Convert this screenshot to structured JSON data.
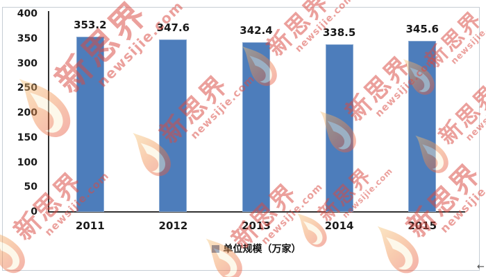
{
  "chart_data": {
    "type": "bar",
    "title": "",
    "categories": [
      "2011",
      "2012",
      "2013",
      "2014",
      "2015"
    ],
    "series": [
      {
        "name": "单位规模（万家）",
        "values": [
          353.2,
          347.6,
          342.4,
          338.5,
          345.6
        ]
      }
    ],
    "data_labels": [
      "353.2",
      "347.6",
      "342.4",
      "338.5",
      "345.6"
    ],
    "xlabel": "",
    "ylabel": "",
    "ylim": [
      0,
      400
    ],
    "yticks": [
      0,
      50,
      100,
      150,
      200,
      250,
      300,
      350,
      400
    ],
    "grid": false,
    "legend_position": "bottom",
    "colors": {
      "bar": "#4d7dbb",
      "bar_edge": "#8aaad2",
      "axis": "#303030",
      "text": "#1a1a1a",
      "legend_marker": "#5b74a8",
      "watermark_red": "#d94a42"
    }
  },
  "legend": {
    "label": "单位规模（万家）"
  },
  "watermark": {
    "brand": "新思界",
    "domain": "newsijie.com"
  },
  "cursor": {
    "glyph": "←"
  }
}
